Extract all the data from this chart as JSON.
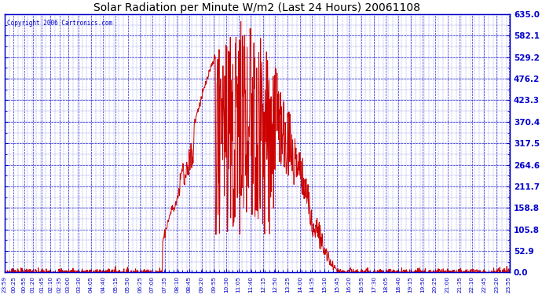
{
  "title": "Solar Radiation per Minute W/m2 (Last 24 Hours) 20061108",
  "copyright": "Copyright 2006 Cartronics.com",
  "background_color": "#ffffff",
  "plot_bg_color": "#ffffff",
  "line_color": "#cc0000",
  "grid_color": "#0000cc",
  "title_color": "#000000",
  "y_ticks": [
    0.0,
    52.9,
    105.8,
    158.8,
    211.7,
    264.6,
    317.5,
    370.4,
    423.3,
    476.2,
    529.2,
    582.1,
    635.0
  ],
  "y_max": 635.0,
  "x_labels": [
    "23:59",
    "00:25",
    "00:55",
    "01:20",
    "01:45",
    "02:10",
    "02:35",
    "03:00",
    "03:30",
    "04:05",
    "04:40",
    "05:15",
    "05:50",
    "06:25",
    "07:00",
    "07:35",
    "08:10",
    "08:45",
    "09:20",
    "09:55",
    "10:30",
    "11:05",
    "11:40",
    "12:15",
    "12:50",
    "13:25",
    "14:00",
    "14:35",
    "15:10",
    "15:45",
    "16:20",
    "16:55",
    "17:30",
    "18:05",
    "18:40",
    "19:15",
    "19:50",
    "20:25",
    "21:00",
    "21:35",
    "22:10",
    "22:45",
    "23:20",
    "23:55"
  ],
  "figwidth": 6.9,
  "figheight": 3.75,
  "dpi": 100
}
